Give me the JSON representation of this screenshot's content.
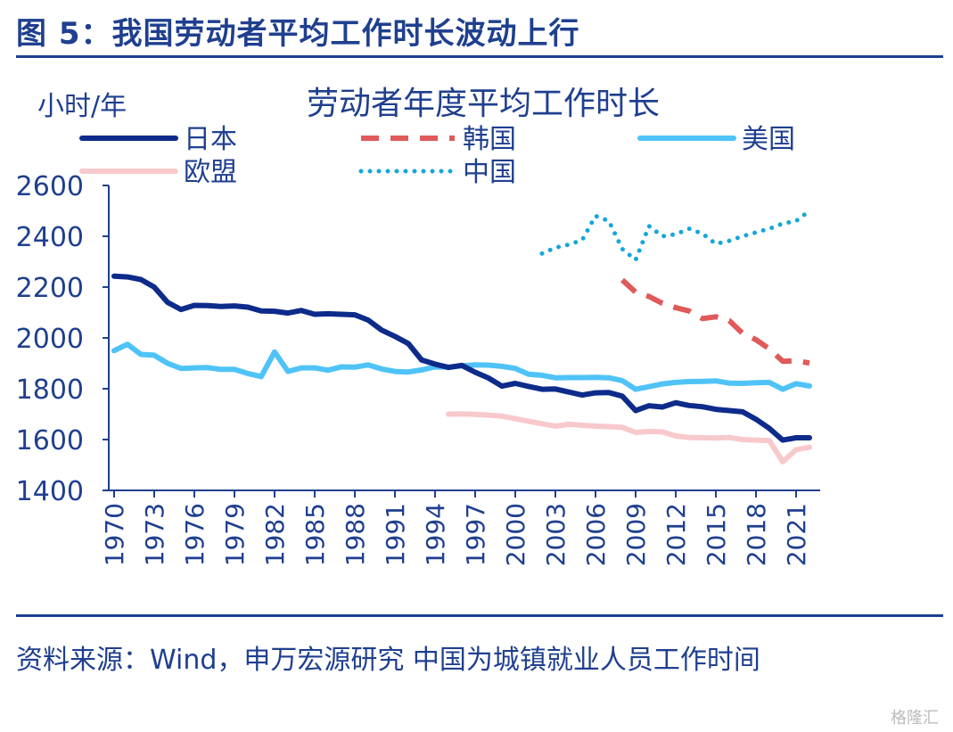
{
  "figure_title": "图 5：我国劳动者平均工作时长波动上行",
  "source_note": "资料来源：Wind，申万宏源研究  中国为城镇就业人员工作时间",
  "watermark": "格隆汇",
  "chart_data": {
    "type": "line",
    "title": "劳动者年度平均工作时长",
    "ylabel": "小时/年",
    "xlabel": "",
    "ylim": [
      1400,
      2600
    ],
    "xlim": [
      1970,
      2022
    ],
    "y_ticks": [
      1400,
      1600,
      1800,
      2000,
      2200,
      2400,
      2600
    ],
    "x_ticks": [
      "1970",
      "1973",
      "1976",
      "1979",
      "1982",
      "1985",
      "1988",
      "1991",
      "1994",
      "1997",
      "2000",
      "2003",
      "2006",
      "2009",
      "2012",
      "2015",
      "2018",
      "2021"
    ],
    "series": [
      {
        "name": "日本",
        "style": "solid",
        "color": "#0d2b8a",
        "x": [
          1970,
          1971,
          1972,
          1973,
          1974,
          1975,
          1976,
          1977,
          1978,
          1979,
          1980,
          1981,
          1982,
          1983,
          1984,
          1985,
          1986,
          1987,
          1988,
          1989,
          1990,
          1991,
          1992,
          1993,
          1994,
          1995,
          1996,
          1997,
          1998,
          1999,
          2000,
          2001,
          2002,
          2003,
          2004,
          2005,
          2006,
          2007,
          2008,
          2009,
          2010,
          2011,
          2012,
          2013,
          2014,
          2015,
          2016,
          2017,
          2018,
          2019,
          2020,
          2021,
          2022
        ],
        "values": [
          2243,
          2240,
          2230,
          2200,
          2140,
          2112,
          2128,
          2127,
          2124,
          2126,
          2121,
          2106,
          2105,
          2098,
          2108,
          2093,
          2095,
          2093,
          2091,
          2070,
          2031,
          2006,
          1978,
          1913,
          1897,
          1884,
          1892,
          1865,
          1842,
          1810,
          1821,
          1809,
          1798,
          1799,
          1787,
          1775,
          1784,
          1785,
          1771,
          1714,
          1733,
          1728,
          1745,
          1734,
          1729,
          1719,
          1714,
          1709,
          1680,
          1644,
          1598,
          1607,
          1607
        ]
      },
      {
        "name": "韩国",
        "style": "dashed",
        "color": "#e05a5a",
        "x": [
          2008,
          2009,
          2010,
          2011,
          2012,
          2013,
          2014,
          2015,
          2016,
          2017,
          2018,
          2019,
          2020,
          2021,
          2022
        ],
        "values": [
          2228,
          2180,
          2163,
          2136,
          2119,
          2106,
          2076,
          2083,
          2068,
          2018,
          1993,
          1957,
          1908,
          1910,
          1901
        ]
      },
      {
        "name": "美国",
        "style": "solid",
        "color": "#4fc3f7",
        "x": [
          1970,
          1971,
          1972,
          1973,
          1974,
          1975,
          1976,
          1977,
          1978,
          1979,
          1980,
          1981,
          1982,
          1983,
          1984,
          1985,
          1986,
          1987,
          1988,
          1989,
          1990,
          1991,
          1992,
          1993,
          1994,
          1995,
          1996,
          1997,
          1998,
          1999,
          2000,
          2001,
          2002,
          2003,
          2004,
          2005,
          2006,
          2007,
          2008,
          2009,
          2010,
          2011,
          2012,
          2013,
          2014,
          2015,
          2016,
          2017,
          2018,
          2019,
          2020,
          2021,
          2022
        ],
        "values": [
          1950,
          1975,
          1935,
          1932,
          1900,
          1880,
          1882,
          1883,
          1876,
          1876,
          1860,
          1848,
          1945,
          1868,
          1882,
          1882,
          1873,
          1886,
          1885,
          1894,
          1878,
          1868,
          1866,
          1874,
          1886,
          1885,
          1890,
          1894,
          1893,
          1888,
          1880,
          1857,
          1853,
          1843,
          1844,
          1844,
          1845,
          1843,
          1832,
          1798,
          1808,
          1819,
          1825,
          1828,
          1829,
          1831,
          1822,
          1821,
          1824,
          1825,
          1798,
          1820,
          1811
        ]
      },
      {
        "name": "欧盟",
        "style": "solid",
        "color": "#f8c9cc",
        "x": [
          1995,
          1996,
          1997,
          1998,
          1999,
          2000,
          2001,
          2002,
          2003,
          2004,
          2005,
          2006,
          2007,
          2008,
          2009,
          2010,
          2011,
          2012,
          2013,
          2014,
          2015,
          2016,
          2017,
          2018,
          2019,
          2020,
          2021,
          2022
        ],
        "values": [
          1700,
          1701,
          1699,
          1696,
          1692,
          1682,
          1672,
          1662,
          1653,
          1660,
          1656,
          1653,
          1651,
          1648,
          1628,
          1632,
          1630,
          1614,
          1608,
          1607,
          1606,
          1608,
          1600,
          1598,
          1596,
          1513,
          1560,
          1570
        ]
      },
      {
        "name": "中国",
        "style": "dotted",
        "color": "#14a6dc",
        "x": [
          2002,
          2003,
          2004,
          2005,
          2006,
          2007,
          2008,
          2009,
          2010,
          2011,
          2012,
          2013,
          2014,
          2015,
          2016,
          2017,
          2018,
          2019,
          2020,
          2021,
          2022
        ],
        "values": [
          2332,
          2355,
          2367,
          2385,
          2480,
          2460,
          2350,
          2307,
          2440,
          2400,
          2408,
          2430,
          2410,
          2370,
          2382,
          2400,
          2415,
          2430,
          2450,
          2460,
          2500
        ]
      }
    ]
  }
}
